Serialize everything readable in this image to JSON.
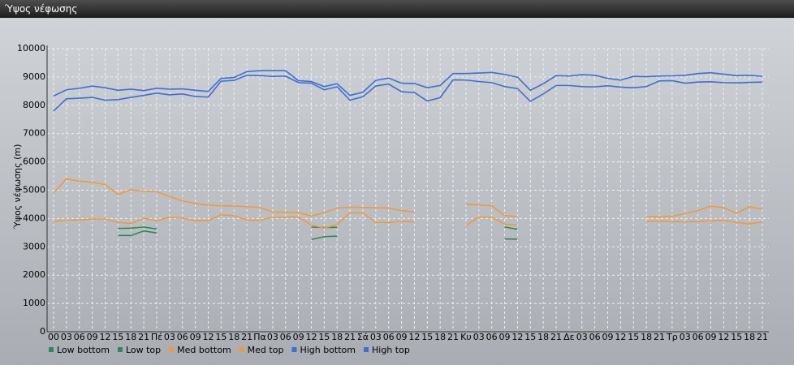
{
  "chart_data": {
    "type": "line",
    "title": "Ύψος νέφωσης",
    "ylabel": "Ύψος νέφωσης (m)",
    "categories": [
      "00",
      "03",
      "06",
      "09",
      "12",
      "15",
      "18",
      "21",
      "Πέ",
      "03",
      "06",
      "09",
      "12",
      "15",
      "18",
      "21",
      "Πα",
      "03",
      "06",
      "09",
      "12",
      "15",
      "18",
      "21",
      "Σά",
      "03",
      "06",
      "09",
      "12",
      "15",
      "18",
      "21",
      "Κυ",
      "03",
      "06",
      "09",
      "12",
      "15",
      "18",
      "21",
      "Δε",
      "03",
      "06",
      "09",
      "12",
      "15",
      "18",
      "21",
      "Τρ",
      "03",
      "06",
      "09",
      "12",
      "15",
      "18",
      "21"
    ],
    "ylim": [
      0,
      10000
    ],
    "yticks": [
      0,
      1000,
      2000,
      3000,
      4000,
      5000,
      6000,
      7000,
      8000,
      9000,
      10000
    ],
    "grid": true,
    "series": [
      {
        "name": "Low bottom",
        "color": "#2b8a55",
        "values": [
          null,
          null,
          null,
          null,
          null,
          3400,
          3400,
          3560,
          3490,
          null,
          null,
          null,
          null,
          null,
          null,
          null,
          null,
          null,
          null,
          null,
          3260,
          3360,
          3380,
          null,
          null,
          null,
          null,
          null,
          null,
          null,
          null,
          null,
          null,
          null,
          null,
          3280,
          3270,
          null,
          null,
          null,
          null,
          null,
          null,
          null,
          null,
          null,
          null,
          null,
          null,
          null,
          null,
          null,
          null,
          null,
          null,
          null
        ]
      },
      {
        "name": "Low top",
        "color": "#2b8a55",
        "values": [
          null,
          null,
          null,
          null,
          null,
          3650,
          3660,
          3700,
          3630,
          null,
          null,
          null,
          null,
          null,
          null,
          null,
          null,
          null,
          null,
          null,
          3700,
          3680,
          3690,
          null,
          null,
          null,
          null,
          null,
          null,
          null,
          null,
          null,
          null,
          null,
          null,
          3700,
          3620,
          null,
          null,
          null,
          null,
          null,
          null,
          null,
          null,
          null,
          null,
          null,
          null,
          null,
          null,
          null,
          null,
          null,
          null,
          null
        ]
      },
      {
        "name": "Med bottom",
        "color": "#f0993a",
        "values": [
          3900,
          3940,
          3950,
          3980,
          3980,
          3870,
          3820,
          4010,
          3920,
          4050,
          4010,
          3930,
          3930,
          4130,
          4100,
          3950,
          3940,
          4040,
          4050,
          4050,
          3770,
          3660,
          3780,
          4200,
          4200,
          3860,
          3860,
          3900,
          3880,
          null,
          null,
          null,
          3750,
          4050,
          4050,
          3800,
          3780,
          null,
          null,
          null,
          null,
          null,
          null,
          null,
          null,
          null,
          3900,
          3910,
          3890,
          3880,
          3900,
          3920,
          3940,
          3860,
          3810,
          3880
        ]
      },
      {
        "name": "Med top",
        "color": "#f0993a",
        "values": [
          4900,
          5400,
          5320,
          5280,
          5200,
          4850,
          5020,
          4960,
          4950,
          4780,
          4620,
          4530,
          4470,
          4450,
          4440,
          4420,
          4390,
          4230,
          4220,
          4210,
          4090,
          4210,
          4370,
          4400,
          4390,
          4380,
          4370,
          4280,
          4230,
          null,
          null,
          null,
          4500,
          4480,
          4450,
          4100,
          4070,
          null,
          null,
          null,
          null,
          null,
          null,
          null,
          null,
          null,
          4060,
          4060,
          4080,
          4170,
          4280,
          4440,
          4380,
          4180,
          4420,
          4330
        ]
      },
      {
        "name": "High bottom",
        "color": "#3b6fd6",
        "values": [
          7800,
          8230,
          8250,
          8280,
          8180,
          8200,
          8280,
          8350,
          8430,
          8370,
          8400,
          8310,
          8290,
          8850,
          8880,
          9060,
          9050,
          9020,
          9030,
          8800,
          8780,
          8550,
          8650,
          8180,
          8300,
          8680,
          8750,
          8480,
          8450,
          8150,
          8270,
          8900,
          8890,
          8840,
          8800,
          8660,
          8590,
          8140,
          8400,
          8700,
          8700,
          8660,
          8650,
          8690,
          8640,
          8620,
          8660,
          8860,
          8870,
          8780,
          8820,
          8830,
          8800,
          8790,
          8810,
          8820
        ]
      },
      {
        "name": "High top",
        "color": "#3b6fd6",
        "values": [
          8330,
          8550,
          8600,
          8680,
          8620,
          8530,
          8570,
          8520,
          8600,
          8570,
          8580,
          8530,
          8490,
          8950,
          8980,
          9190,
          9220,
          9230,
          9220,
          8870,
          8840,
          8660,
          8760,
          8350,
          8460,
          8880,
          8960,
          8780,
          8770,
          8620,
          8700,
          9120,
          9120,
          9140,
          9160,
          9090,
          8990,
          8530,
          8760,
          9050,
          9030,
          9080,
          9060,
          8950,
          8890,
          9020,
          9010,
          9030,
          9040,
          9060,
          9120,
          9150,
          9100,
          9050,
          9060,
          9020
        ]
      }
    ]
  }
}
